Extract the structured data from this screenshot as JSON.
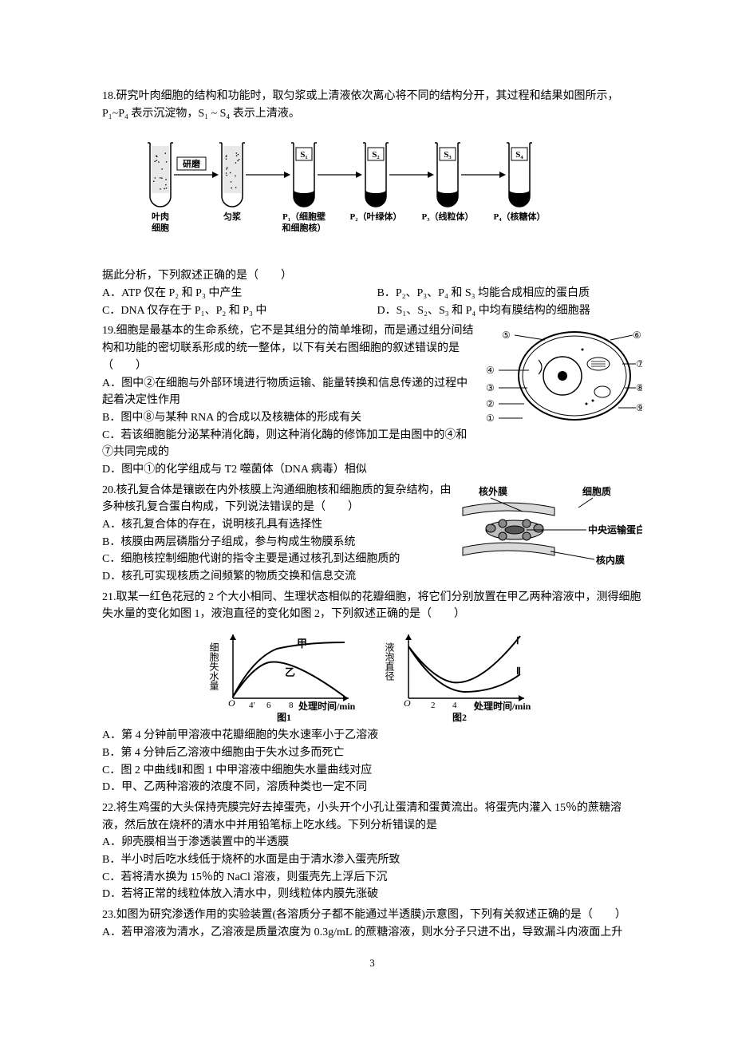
{
  "q18": {
    "stem1": "18.研究叶肉细胞的结构和功能时，取匀浆或上清液依次离心将不同的结构分开，其过程和结果如图所示，P₁~P₄ 表示沉淀物，S₁ ~ S₄ 表示上清液。",
    "fig": {
      "items": [
        {
          "top": "",
          "bottom": "叶肉\n细胞"
        },
        {
          "top": "",
          "bottom": "匀浆"
        },
        {
          "top": "S₁",
          "bottom": "P₁（细胞壁\n和细胞核）"
        },
        {
          "top": "S₂",
          "bottom": "P₂（叶绿体）"
        },
        {
          "top": "S₃",
          "bottom": "P₃（线粒体）"
        },
        {
          "top": "S₄",
          "bottom": "P₄（核糖体）"
        }
      ],
      "arrow_label": "研磨"
    },
    "stem2": "据此分析，下列叙述正确的是（　　）",
    "A": "A．ATP 仅在 P₂ 和 P₃ 中产生",
    "B": "B．P₂、P₃、P₄ 和 S₃ 均能合成相应的蛋白质",
    "C": "C．DNA 仅存在于 P₁、P₂ 和 P₃ 中",
    "D": "D．S₁、S₂、S₃ 和 P₄ 中均有膜结构的细胞器"
  },
  "q19": {
    "stem": "19.细胞是最基本的生命系统，它不是其组分的简单堆砌，而是通过组分间结构和功能的密切联系形成的统一整体，以下有关右图细胞的叙述错误的是（　　）",
    "A": "A．图中②在细胞与外部环境进行物质运输、能量转换和信息传递的过程中起着决定性作用",
    "B": "B．图中⑧与某种 RNA 的合成以及核糖体的形成有关",
    "C": "C．若该细胞能分泌某种消化酶，则这种消化酶的修饰加工是由图中的④和⑦共同完成的",
    "D": "D．图中①的化学组成与 T2 噬菌体（DNA 病毒）相似",
    "cell_labels": [
      "①",
      "②",
      "③",
      "④",
      "⑤",
      "⑥",
      "⑦",
      "⑧",
      "⑨"
    ]
  },
  "q20": {
    "stem": "20.核孔复合体是镶嵌在内外核膜上沟通细胞核和细胞质的复杂结构，由多种核孔复合蛋白构成，下列说法错误的是（　　）",
    "A": "A．核孔复合体的存在，说明核孔具有选择性",
    "B": "B．核膜由两层磷脂分子组成，参与构成生物膜系统",
    "C": "C．细胞核控制细胞代谢的指令主要是通过核孔到达细胞质的",
    "D": "D．核孔可实现核质之间频繁的物质交换和信息交流",
    "fig_labels": {
      "outer": "核外膜",
      "cyto": "细胞质",
      "center": "中央运输蛋白",
      "inner": "核内膜"
    }
  },
  "q21": {
    "stem": "21.取某一红色花冠的 2 个大小相同、生理状态相似的花瓣细胞，将它们分别放置在甲乙两种溶液中，测得细胞失水量的变化如图 1，液泡直径的变化如图 2，下列叙述正确的是（　　）",
    "A": "A．第 4 分钟前甲溶液中花瓣细胞的失水速率小于乙溶液",
    "B": "B．第 4 分钟后乙溶液中细胞由于失水过多而死亡",
    "C": "C．图 2 中曲线Ⅱ和图 1 中甲溶液中细胞失水量曲线对应",
    "D": "D．甲、乙两种溶液的浓度不同，溶质种类也一定不同",
    "fig1": {
      "ylabel": "细胞失水量",
      "xlabel": "处理时间/min",
      "caption": "图1",
      "xticks": [
        "4′",
        "6",
        "8"
      ],
      "series_labels": [
        "甲",
        "乙"
      ]
    },
    "fig2": {
      "ylabel": "液泡直径",
      "xlabel": "处理时间/min",
      "caption": "图2",
      "xticks": [
        "2",
        "4",
        "6",
        "8"
      ],
      "series_labels": [
        "Ⅰ",
        "Ⅱ"
      ]
    }
  },
  "q22": {
    "stem": "22.将生鸡蛋的大头保持壳膜完好去掉蛋壳，小头开个小孔让蛋清和蛋黄流出。将蛋壳内灌入 15％的蔗糖溶液，然后放在烧杯的清水中并用铅笔标上吃水线。下列分析错误的是",
    "A": "A．卵壳膜相当于渗透装置中的半透膜",
    "B": "B．半小时后吃水线低于烧杯的水面是由于清水渗入蛋壳所致",
    "C": "C．若将清水换为 15％的 NaCl 溶液，则蛋壳先上浮后下沉",
    "D": "D．若将正常的线粒体放入清水中，则线粒体内膜先涨破"
  },
  "q23": {
    "stem": "23.如图为研究渗透作用的实验装置(各溶质分子都不能通过半透膜)示意图，下列有关叙述正确的是（　　）",
    "A": "A．若甲溶液为清水，乙溶液是质量浓度为 0.3g/mL 的蔗糖溶液，则水分子只进不出，导致漏斗内液面上升"
  },
  "page_num": "3",
  "colors": {
    "text": "#000000",
    "bg": "#ffffff",
    "line": "#000000"
  }
}
